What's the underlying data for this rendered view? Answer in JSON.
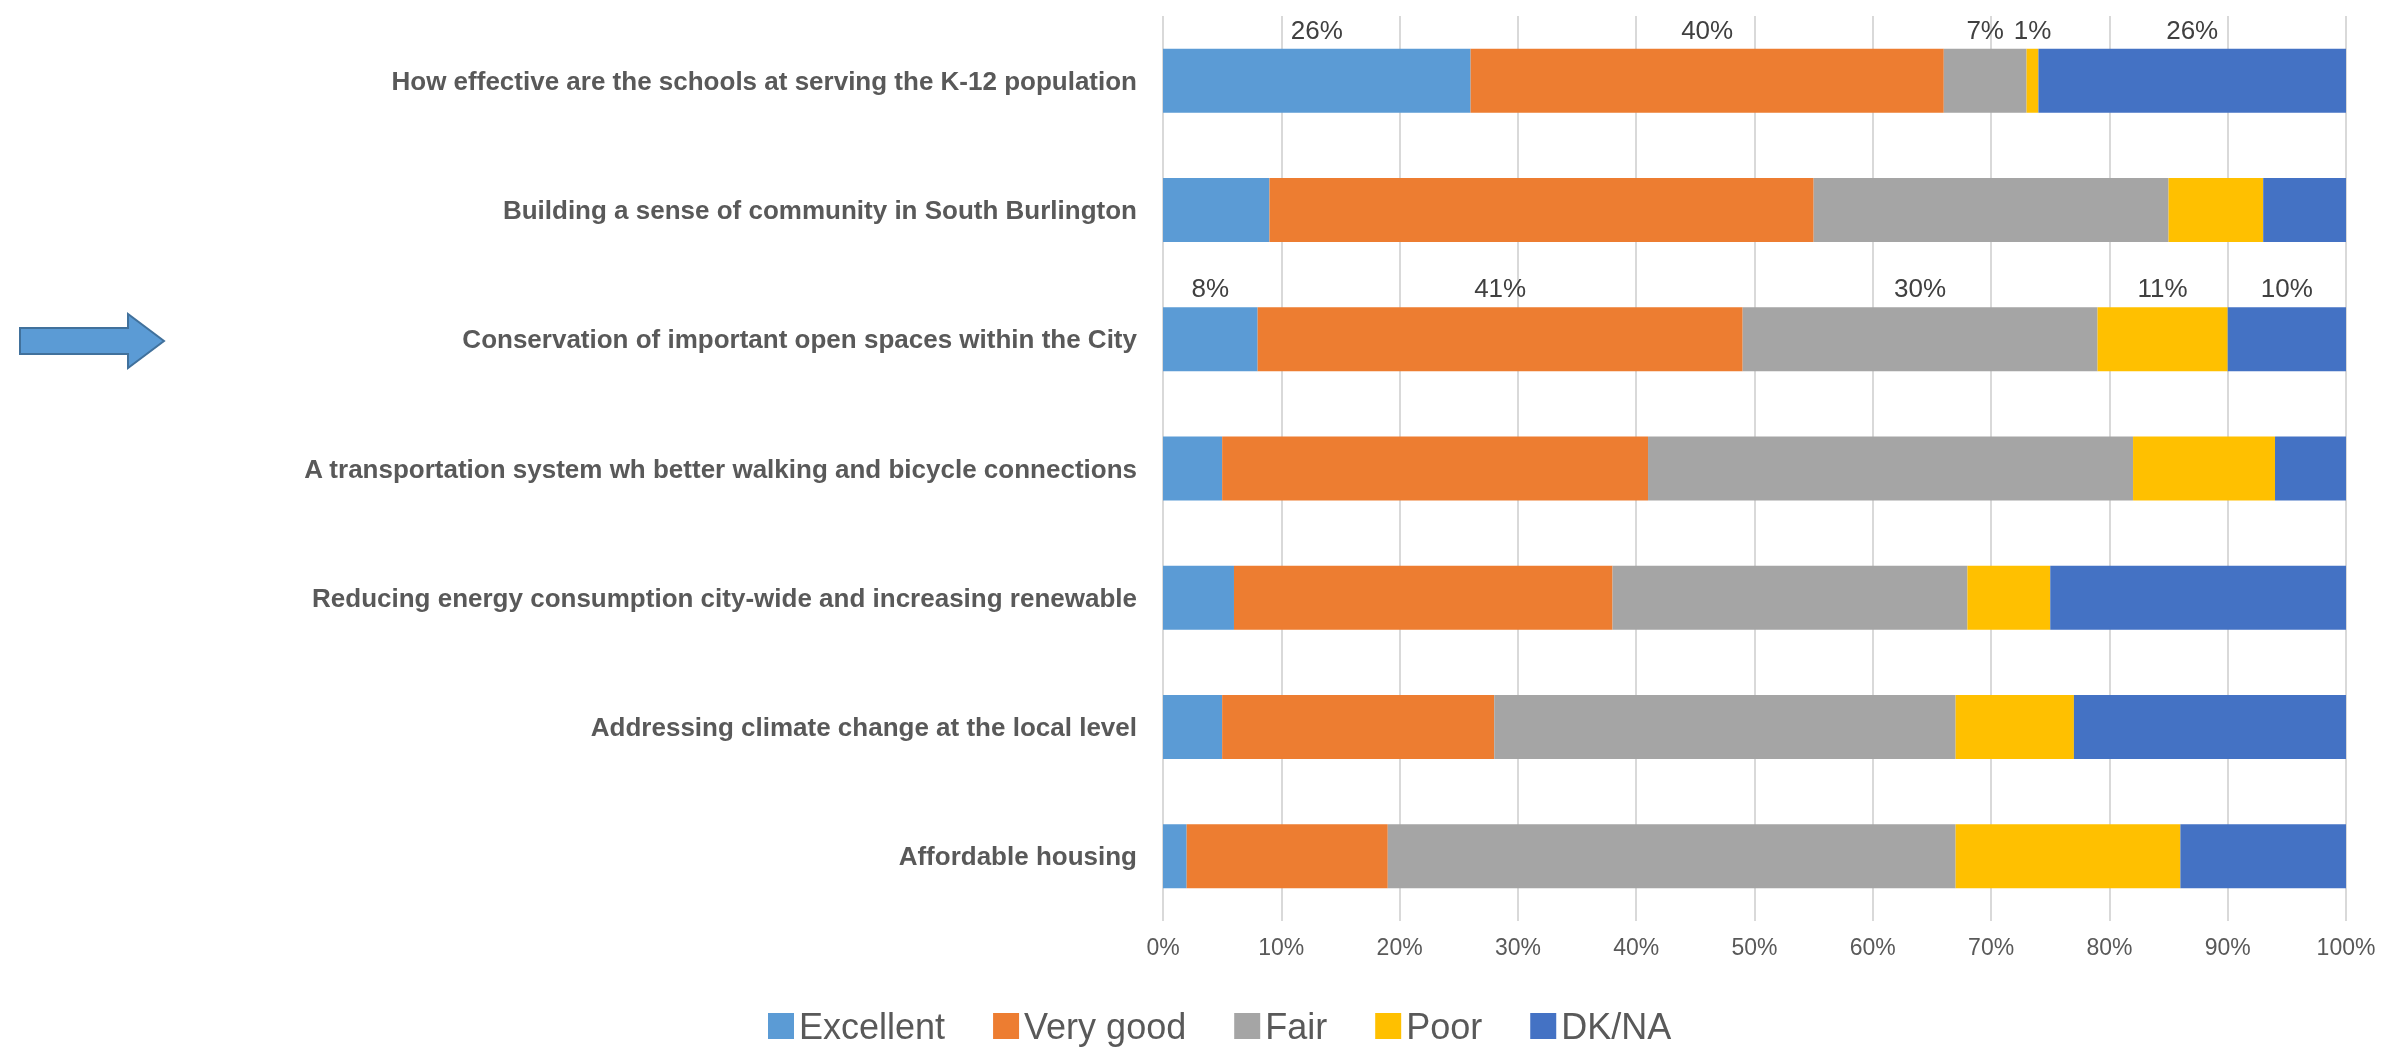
{
  "chart_data": {
    "type": "bar",
    "orientation": "horizontal",
    "stacked": true,
    "categories": [
      "How effective are the schools at serving the K-12 population",
      "Building a sense of community in South Burlington",
      "Conservation of important open spaces within the City",
      "A transportation system wh better walking and bicycle connections",
      "Reducing energy consumption city-wide and increasing renewable",
      "Addressing climate change at the local level",
      "Affordable housing"
    ],
    "series": [
      {
        "name": "Excellent",
        "color": "#5b9bd5",
        "values": [
          26,
          9,
          8,
          5,
          6,
          5,
          2
        ],
        "value_labels": [
          "26%",
          null,
          "8%",
          null,
          null,
          null,
          null
        ]
      },
      {
        "name": "Very good",
        "color": "#ed7d31",
        "values": [
          40,
          46,
          41,
          36,
          32,
          23,
          17
        ],
        "value_labels": [
          "40%",
          null,
          "41%",
          null,
          null,
          null,
          null
        ]
      },
      {
        "name": "Fair",
        "color": "#a5a5a5",
        "values": [
          7,
          30,
          30,
          41,
          30,
          39,
          48
        ],
        "value_labels": [
          "7%",
          null,
          "30%",
          null,
          null,
          null,
          null
        ]
      },
      {
        "name": "Poor",
        "color": "#ffc000",
        "values": [
          1,
          8,
          11,
          12,
          7,
          10,
          19
        ],
        "value_labels": [
          "1%",
          null,
          "11%",
          null,
          null,
          null,
          null
        ]
      },
      {
        "name": "DK/NA",
        "color": "#4472c4",
        "values": [
          26,
          7,
          10,
          6,
          25,
          23,
          14
        ],
        "value_labels": [
          "26%",
          null,
          "10%",
          null,
          null,
          null,
          null
        ]
      }
    ],
    "xlim": [
      0,
      100
    ],
    "xticks": [
      {
        "value": 0,
        "label": "0%"
      },
      {
        "value": 10,
        "label": "10%"
      },
      {
        "value": 20,
        "label": "20%"
      },
      {
        "value": 30,
        "label": "30%"
      },
      {
        "value": 40,
        "label": "40%"
      },
      {
        "value": 50,
        "label": "50%"
      },
      {
        "value": 60,
        "label": "60%"
      },
      {
        "value": 70,
        "label": "70%"
      },
      {
        "value": 80,
        "label": "80%"
      },
      {
        "value": 90,
        "label": "90%"
      },
      {
        "value": 100,
        "label": "100%"
      }
    ],
    "grid": "x",
    "legend": "bottom"
  }
}
